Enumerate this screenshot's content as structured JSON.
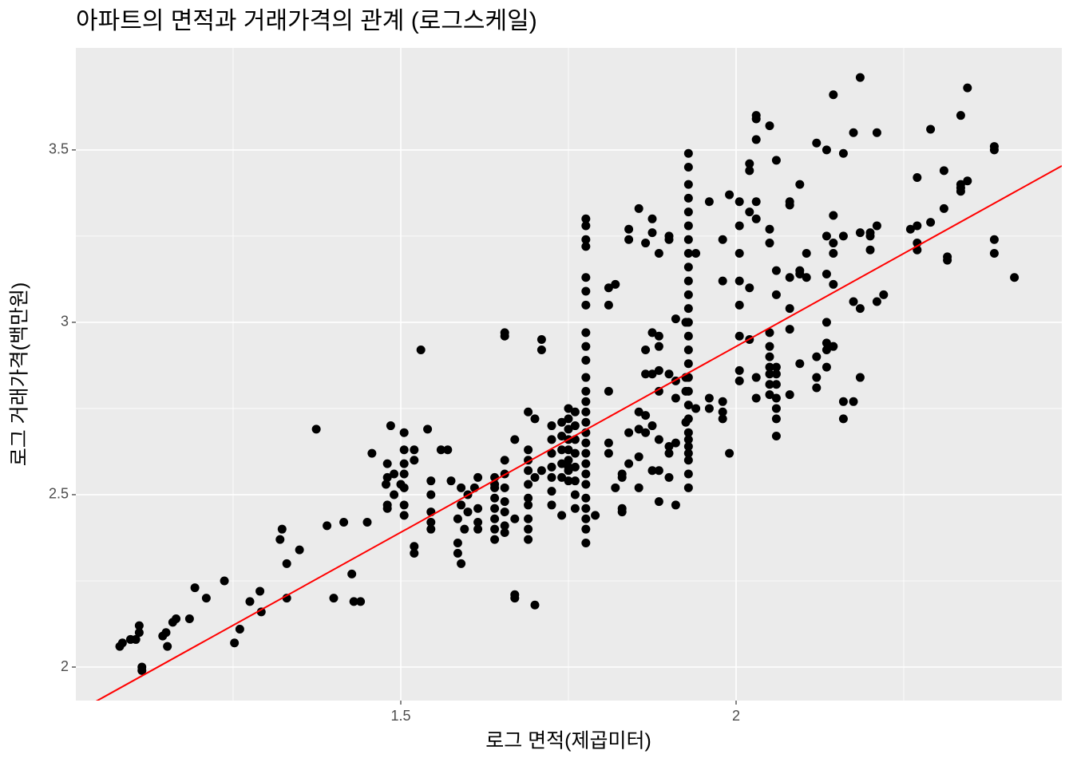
{
  "chart_data": {
    "type": "scatter",
    "title": "아파트의 면적과 거래가격의 관계 (로그스케일)",
    "x_label": "로그 면적(제곱미터)",
    "y_label": "로그 거래가격(백만원)",
    "xlim": [
      1.0155,
      2.4857
    ],
    "ylim": [
      1.9028,
      3.796
    ],
    "xticks": [
      1.5,
      2.0
    ],
    "yticks": [
      2.0,
      2.5,
      3.0,
      3.5
    ],
    "x_minor_grid": [
      1.25,
      1.75,
      2.25
    ],
    "y_minor_grid": [
      2.25,
      2.75,
      3.25
    ],
    "grid": true,
    "color": "#000000",
    "trend": {
      "slope": 1.0785,
      "intercept": 0.773,
      "color": "#ff0000"
    },
    "points": [
      [
        1.081,
        2.06
      ],
      [
        1.085,
        2.07
      ],
      [
        1.097,
        2.08
      ],
      [
        1.105,
        2.08
      ],
      [
        1.11,
        2.12
      ],
      [
        1.11,
        2.1
      ],
      [
        1.114,
        2.0
      ],
      [
        1.114,
        1.99
      ],
      [
        1.145,
        2.09
      ],
      [
        1.15,
        2.1
      ],
      [
        1.152,
        2.06
      ],
      [
        1.16,
        2.13
      ],
      [
        1.165,
        2.14
      ],
      [
        1.193,
        2.23
      ],
      [
        1.185,
        2.14
      ],
      [
        1.21,
        2.2
      ],
      [
        1.237,
        2.25
      ],
      [
        1.252,
        2.07
      ],
      [
        1.26,
        2.11
      ],
      [
        1.275,
        2.19
      ],
      [
        1.29,
        2.22
      ],
      [
        1.292,
        2.16
      ],
      [
        1.32,
        2.37
      ],
      [
        1.323,
        2.4
      ],
      [
        1.33,
        2.3
      ],
      [
        1.33,
        2.2
      ],
      [
        1.349,
        2.34
      ],
      [
        1.374,
        2.69
      ],
      [
        1.39,
        2.41
      ],
      [
        1.4,
        2.2
      ],
      [
        1.415,
        2.42
      ],
      [
        1.427,
        2.27
      ],
      [
        1.43,
        2.19
      ],
      [
        1.44,
        2.19
      ],
      [
        1.45,
        2.42
      ],
      [
        1.457,
        2.62
      ],
      [
        1.478,
        2.53
      ],
      [
        1.48,
        2.55
      ],
      [
        1.48,
        2.59
      ],
      [
        1.48,
        2.47
      ],
      [
        1.48,
        2.46
      ],
      [
        1.485,
        2.7
      ],
      [
        1.49,
        2.56
      ],
      [
        1.49,
        2.5
      ],
      [
        1.5,
        2.53
      ],
      [
        1.505,
        2.68
      ],
      [
        1.505,
        2.63
      ],
      [
        1.505,
        2.59
      ],
      [
        1.505,
        2.56
      ],
      [
        1.505,
        2.52
      ],
      [
        1.505,
        2.47
      ],
      [
        1.505,
        2.44
      ],
      [
        1.52,
        2.35
      ],
      [
        1.52,
        2.33
      ],
      [
        1.52,
        2.63
      ],
      [
        1.52,
        2.6
      ],
      [
        1.53,
        2.92
      ],
      [
        1.54,
        2.69
      ],
      [
        1.545,
        2.54
      ],
      [
        1.545,
        2.5
      ],
      [
        1.545,
        2.45
      ],
      [
        1.545,
        2.42
      ],
      [
        1.545,
        2.4
      ],
      [
        1.56,
        2.63
      ],
      [
        1.57,
        2.63
      ],
      [
        1.575,
        2.54
      ],
      [
        1.585,
        2.43
      ],
      [
        1.585,
        2.36
      ],
      [
        1.585,
        2.33
      ],
      [
        1.59,
        2.3
      ],
      [
        1.59,
        2.52
      ],
      [
        1.59,
        2.47
      ],
      [
        1.595,
        2.4
      ],
      [
        1.6,
        2.5
      ],
      [
        1.6,
        2.45
      ],
      [
        1.61,
        2.52
      ],
      [
        1.615,
        2.55
      ],
      [
        1.615,
        2.46
      ],
      [
        1.615,
        2.42
      ],
      [
        1.615,
        2.4
      ],
      [
        1.64,
        2.55
      ],
      [
        1.64,
        2.52
      ],
      [
        1.64,
        2.49
      ],
      [
        1.64,
        2.46
      ],
      [
        1.64,
        2.43
      ],
      [
        1.64,
        2.4
      ],
      [
        1.64,
        2.37
      ],
      [
        1.64,
        2.53
      ],
      [
        1.655,
        2.6
      ],
      [
        1.655,
        2.56
      ],
      [
        1.655,
        2.52
      ],
      [
        1.655,
        2.48
      ],
      [
        1.655,
        2.45
      ],
      [
        1.655,
        2.41
      ],
      [
        1.655,
        2.39
      ],
      [
        1.655,
        2.97
      ],
      [
        1.655,
        2.96
      ],
      [
        1.67,
        2.66
      ],
      [
        1.67,
        2.43
      ],
      [
        1.67,
        2.21
      ],
      [
        1.67,
        2.2
      ],
      [
        1.69,
        2.74
      ],
      [
        1.69,
        2.63
      ],
      [
        1.69,
        2.6
      ],
      [
        1.69,
        2.57
      ],
      [
        1.69,
        2.53
      ],
      [
        1.69,
        2.49
      ],
      [
        1.69,
        2.47
      ],
      [
        1.69,
        2.43
      ],
      [
        1.69,
        2.4
      ],
      [
        1.69,
        2.37
      ],
      [
        1.7,
        2.72
      ],
      [
        1.7,
        2.18
      ],
      [
        1.7,
        2.55
      ],
      [
        1.71,
        2.92
      ],
      [
        1.71,
        2.95
      ],
      [
        1.71,
        2.57
      ],
      [
        1.725,
        2.7
      ],
      [
        1.725,
        2.66
      ],
      [
        1.725,
        2.62
      ],
      [
        1.725,
        2.58
      ],
      [
        1.725,
        2.55
      ],
      [
        1.725,
        2.51
      ],
      [
        1.725,
        2.47
      ],
      [
        1.74,
        2.71
      ],
      [
        1.74,
        2.67
      ],
      [
        1.74,
        2.63
      ],
      [
        1.74,
        2.59
      ],
      [
        1.74,
        2.55
      ],
      [
        1.74,
        2.44
      ],
      [
        1.75,
        2.75
      ],
      [
        1.75,
        2.72
      ],
      [
        1.75,
        2.69
      ],
      [
        1.75,
        2.66
      ],
      [
        1.75,
        2.63
      ],
      [
        1.75,
        2.6
      ],
      [
        1.75,
        2.57
      ],
      [
        1.75,
        2.54
      ],
      [
        1.75,
        2.58
      ],
      [
        1.76,
        2.74
      ],
      [
        1.76,
        2.7
      ],
      [
        1.76,
        2.66
      ],
      [
        1.76,
        2.62
      ],
      [
        1.76,
        2.58
      ],
      [
        1.76,
        2.54
      ],
      [
        1.76,
        2.5
      ],
      [
        1.76,
        2.46
      ],
      [
        1.776,
        3.3
      ],
      [
        1.776,
        3.28
      ],
      [
        1.776,
        3.24
      ],
      [
        1.776,
        3.22
      ],
      [
        1.776,
        3.13
      ],
      [
        1.776,
        3.09
      ],
      [
        1.776,
        3.05
      ],
      [
        1.776,
        2.97
      ],
      [
        1.776,
        2.93
      ],
      [
        1.776,
        2.89
      ],
      [
        1.776,
        2.84
      ],
      [
        1.776,
        2.8
      ],
      [
        1.776,
        2.77
      ],
      [
        1.776,
        2.74
      ],
      [
        1.776,
        2.71
      ],
      [
        1.776,
        2.68
      ],
      [
        1.776,
        2.65
      ],
      [
        1.776,
        2.62
      ],
      [
        1.776,
        2.59
      ],
      [
        1.776,
        2.56
      ],
      [
        1.776,
        2.53
      ],
      [
        1.776,
        2.49
      ],
      [
        1.776,
        2.46
      ],
      [
        1.776,
        2.43
      ],
      [
        1.776,
        2.4
      ],
      [
        1.776,
        2.36
      ],
      [
        1.79,
        2.44
      ],
      [
        1.81,
        3.1
      ],
      [
        1.81,
        3.05
      ],
      [
        1.81,
        2.8
      ],
      [
        1.81,
        2.65
      ],
      [
        1.81,
        2.62
      ],
      [
        1.82,
        3.11
      ],
      [
        1.82,
        2.52
      ],
      [
        1.83,
        2.45
      ],
      [
        1.83,
        2.46
      ],
      [
        1.83,
        2.56
      ],
      [
        1.83,
        2.55
      ],
      [
        1.84,
        3.27
      ],
      [
        1.84,
        3.24
      ],
      [
        1.84,
        2.68
      ],
      [
        1.84,
        2.59
      ],
      [
        1.855,
        3.33
      ],
      [
        1.855,
        2.74
      ],
      [
        1.855,
        2.61
      ],
      [
        1.855,
        2.69
      ],
      [
        1.855,
        2.52
      ],
      [
        1.865,
        3.23
      ],
      [
        1.865,
        2.85
      ],
      [
        1.865,
        2.73
      ],
      [
        1.865,
        2.68
      ],
      [
        1.865,
        2.92
      ],
      [
        1.875,
        3.3
      ],
      [
        1.875,
        3.26
      ],
      [
        1.875,
        2.97
      ],
      [
        1.875,
        2.85
      ],
      [
        1.875,
        2.57
      ],
      [
        1.875,
        2.7
      ],
      [
        1.885,
        3.2
      ],
      [
        1.885,
        2.96
      ],
      [
        1.885,
        2.86
      ],
      [
        1.885,
        2.8
      ],
      [
        1.885,
        2.66
      ],
      [
        1.885,
        2.93
      ],
      [
        1.885,
        2.48
      ],
      [
        1.885,
        2.57
      ],
      [
        1.9,
        3.25
      ],
      [
        1.9,
        3.24
      ],
      [
        1.9,
        2.85
      ],
      [
        1.9,
        2.64
      ],
      [
        1.9,
        2.62
      ],
      [
        1.9,
        2.55
      ],
      [
        1.91,
        3.01
      ],
      [
        1.91,
        2.83
      ],
      [
        1.91,
        2.78
      ],
      [
        1.91,
        2.65
      ],
      [
        1.91,
        2.47
      ],
      [
        1.925,
        3.0
      ],
      [
        1.925,
        2.84
      ],
      [
        1.925,
        2.8
      ],
      [
        1.925,
        2.71
      ],
      [
        1.929,
        3.49
      ],
      [
        1.929,
        3.45
      ],
      [
        1.929,
        3.4
      ],
      [
        1.929,
        3.36
      ],
      [
        1.929,
        3.32
      ],
      [
        1.929,
        3.28
      ],
      [
        1.929,
        3.24
      ],
      [
        1.929,
        3.2
      ],
      [
        1.929,
        3.16
      ],
      [
        1.929,
        3.12
      ],
      [
        1.929,
        3.08
      ],
      [
        1.929,
        3.04
      ],
      [
        1.929,
        3.0
      ],
      [
        1.929,
        2.96
      ],
      [
        1.929,
        2.92
      ],
      [
        1.929,
        2.88
      ],
      [
        1.929,
        2.84
      ],
      [
        1.929,
        2.8
      ],
      [
        1.929,
        2.76
      ],
      [
        1.929,
        2.72
      ],
      [
        1.929,
        2.68
      ],
      [
        1.929,
        2.64
      ],
      [
        1.929,
        2.6
      ],
      [
        1.929,
        2.56
      ],
      [
        1.929,
        2.52
      ],
      [
        1.929,
        2.62
      ],
      [
        1.929,
        2.66
      ],
      [
        1.94,
        3.2
      ],
      [
        1.94,
        2.75
      ],
      [
        1.96,
        3.35
      ],
      [
        1.96,
        2.75
      ],
      [
        1.96,
        2.78
      ],
      [
        1.98,
        3.24
      ],
      [
        1.98,
        3.12
      ],
      [
        1.98,
        2.77
      ],
      [
        1.98,
        2.72
      ],
      [
        1.98,
        2.74
      ],
      [
        1.99,
        3.37
      ],
      [
        1.99,
        2.62
      ],
      [
        2.005,
        3.35
      ],
      [
        2.005,
        3.28
      ],
      [
        2.005,
        3.2
      ],
      [
        2.005,
        3.12
      ],
      [
        2.005,
        3.05
      ],
      [
        2.005,
        2.96
      ],
      [
        2.005,
        2.86
      ],
      [
        2.005,
        2.83
      ],
      [
        2.02,
        3.46
      ],
      [
        2.02,
        3.44
      ],
      [
        2.02,
        3.32
      ],
      [
        2.02,
        3.1
      ],
      [
        2.02,
        2.95
      ],
      [
        2.03,
        3.6
      ],
      [
        2.03,
        3.59
      ],
      [
        2.03,
        3.53
      ],
      [
        2.03,
        3.35
      ],
      [
        2.03,
        3.3
      ],
      [
        2.03,
        2.84
      ],
      [
        2.03,
        2.78
      ],
      [
        2.05,
        3.57
      ],
      [
        2.05,
        3.27
      ],
      [
        2.05,
        3.23
      ],
      [
        2.05,
        2.85
      ],
      [
        2.05,
        2.82
      ],
      [
        2.05,
        2.79
      ],
      [
        2.05,
        2.97
      ],
      [
        2.05,
        2.93
      ],
      [
        2.05,
        2.9
      ],
      [
        2.05,
        2.87
      ],
      [
        2.06,
        3.47
      ],
      [
        2.06,
        3.15
      ],
      [
        2.06,
        3.08
      ],
      [
        2.06,
        2.87
      ],
      [
        2.06,
        2.85
      ],
      [
        2.06,
        2.82
      ],
      [
        2.06,
        2.78
      ],
      [
        2.06,
        2.75
      ],
      [
        2.06,
        2.72
      ],
      [
        2.06,
        2.67
      ],
      [
        2.08,
        3.35
      ],
      [
        2.08,
        3.34
      ],
      [
        2.08,
        3.04
      ],
      [
        2.08,
        2.98
      ],
      [
        2.08,
        2.79
      ],
      [
        2.08,
        3.13
      ],
      [
        2.095,
        3.4
      ],
      [
        2.095,
        2.88
      ],
      [
        2.095,
        3.15
      ],
      [
        2.095,
        3.14
      ],
      [
        2.105,
        3.2
      ],
      [
        2.105,
        3.13
      ],
      [
        2.12,
        3.52
      ],
      [
        2.12,
        2.81
      ],
      [
        2.12,
        2.84
      ],
      [
        2.12,
        2.9
      ],
      [
        2.135,
        3.5
      ],
      [
        2.135,
        3.25
      ],
      [
        2.135,
        3.0
      ],
      [
        2.135,
        2.94
      ],
      [
        2.135,
        2.92
      ],
      [
        2.135,
        2.87
      ],
      [
        2.135,
        3.14
      ],
      [
        2.145,
        3.66
      ],
      [
        2.145,
        3.31
      ],
      [
        2.145,
        3.23
      ],
      [
        2.145,
        3.2
      ],
      [
        2.145,
        3.11
      ],
      [
        2.145,
        2.93
      ],
      [
        2.16,
        3.49
      ],
      [
        2.16,
        3.25
      ],
      [
        2.16,
        2.77
      ],
      [
        2.16,
        2.72
      ],
      [
        2.175,
        3.55
      ],
      [
        2.175,
        3.06
      ],
      [
        2.175,
        2.77
      ],
      [
        2.185,
        3.71
      ],
      [
        2.185,
        3.26
      ],
      [
        2.185,
        3.04
      ],
      [
        2.185,
        2.84
      ],
      [
        2.2,
        3.26
      ],
      [
        2.2,
        3.21
      ],
      [
        2.2,
        3.25
      ],
      [
        2.21,
        3.55
      ],
      [
        2.21,
        3.28
      ],
      [
        2.21,
        3.06
      ],
      [
        2.22,
        3.08
      ],
      [
        2.26,
        3.27
      ],
      [
        2.27,
        3.42
      ],
      [
        2.27,
        3.28
      ],
      [
        2.27,
        3.21
      ],
      [
        2.27,
        3.23
      ],
      [
        2.29,
        3.56
      ],
      [
        2.29,
        3.29
      ],
      [
        2.31,
        3.44
      ],
      [
        2.31,
        3.33
      ],
      [
        2.315,
        3.19
      ],
      [
        2.315,
        3.18
      ],
      [
        2.335,
        3.6
      ],
      [
        2.335,
        3.4
      ],
      [
        2.335,
        3.39
      ],
      [
        2.335,
        3.38
      ],
      [
        2.345,
        3.68
      ],
      [
        2.345,
        3.41
      ],
      [
        2.385,
        3.51
      ],
      [
        2.385,
        3.5
      ],
      [
        2.385,
        3.24
      ],
      [
        2.385,
        3.2
      ],
      [
        2.415,
        3.13
      ]
    ]
  }
}
